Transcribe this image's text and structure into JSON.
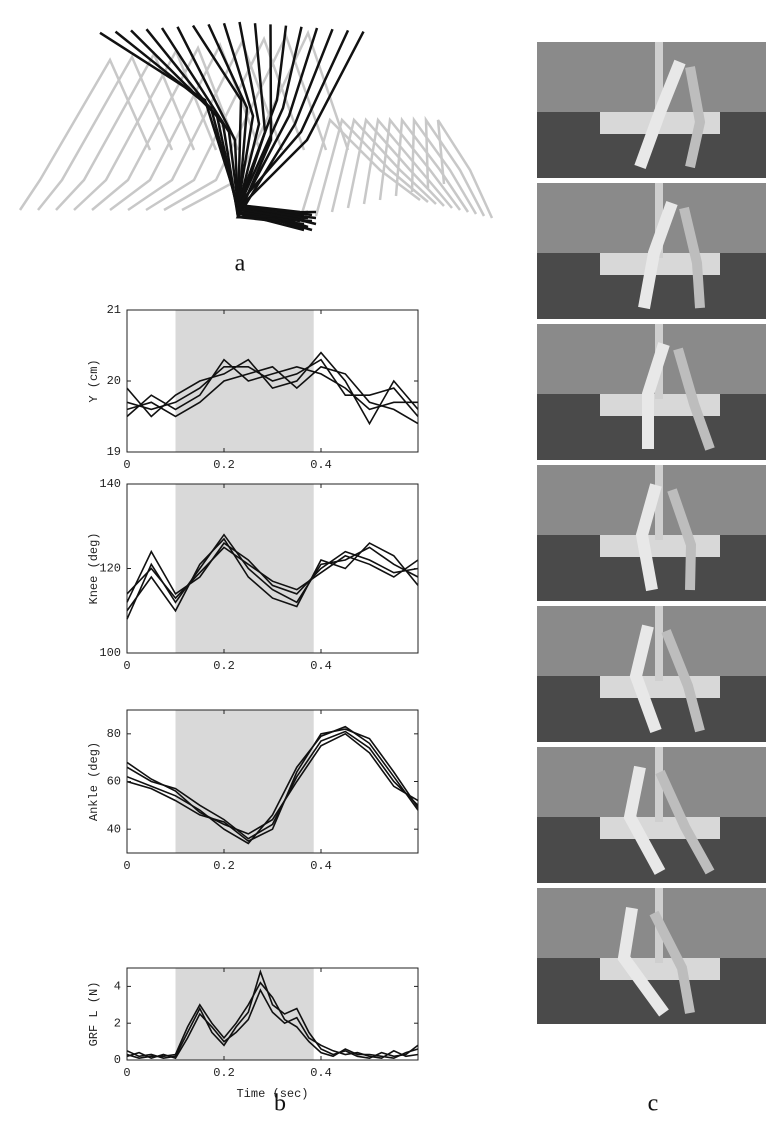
{
  "panel_labels": [
    "a",
    "b",
    "c"
  ],
  "chart_data": [
    {
      "type": "line",
      "ylabel": "Y (cm)",
      "xlim": [
        0,
        0.6
      ],
      "xticks": [
        0,
        0.2,
        0.4
      ],
      "ylim": [
        19,
        21
      ],
      "yticks": [
        19,
        20,
        21
      ],
      "shade": [
        0.1,
        0.385
      ],
      "x": [
        0,
        0.05,
        0.1,
        0.15,
        0.2,
        0.25,
        0.3,
        0.35,
        0.4,
        0.45,
        0.5,
        0.55,
        0.6
      ],
      "series": [
        {
          "color": "#111111",
          "values": [
            19.7,
            19.6,
            19.7,
            19.9,
            20.2,
            20.2,
            20.0,
            20.1,
            20.3,
            19.8,
            19.8,
            19.9,
            19.5
          ]
        },
        {
          "color": "#111111",
          "values": [
            19.5,
            19.8,
            19.6,
            19.8,
            20.3,
            20.0,
            20.1,
            20.2,
            20.1,
            19.9,
            19.6,
            19.7,
            19.7
          ]
        },
        {
          "color": "#111111",
          "values": [
            19.9,
            19.5,
            19.8,
            20.0,
            20.1,
            20.3,
            19.9,
            20.0,
            20.4,
            20.0,
            19.4,
            20.0,
            19.6
          ]
        },
        {
          "color": "#111111",
          "values": [
            19.6,
            19.7,
            19.5,
            19.7,
            20.0,
            20.1,
            20.2,
            19.9,
            20.2,
            20.1,
            19.7,
            19.6,
            19.4
          ]
        }
      ]
    },
    {
      "type": "line",
      "ylabel": "Knee (deg)",
      "xlim": [
        0,
        0.6
      ],
      "xticks": [
        0,
        0.2,
        0.4
      ],
      "ylim": [
        100,
        140
      ],
      "yticks": [
        100,
        120,
        140
      ],
      "shade": [
        0.1,
        0.385
      ],
      "x": [
        0,
        0.05,
        0.1,
        0.15,
        0.2,
        0.25,
        0.3,
        0.35,
        0.4,
        0.45,
        0.5,
        0.55,
        0.6
      ],
      "series": [
        {
          "color": "#111111",
          "values": [
            108,
            121,
            112,
            120,
            128,
            120,
            115,
            112,
            121,
            122,
            125,
            121,
            118
          ]
        },
        {
          "color": "#111111",
          "values": [
            112,
            124,
            114,
            118,
            126,
            122,
            116,
            114,
            120,
            124,
            122,
            119,
            120
          ]
        },
        {
          "color": "#111111",
          "values": [
            110,
            118,
            110,
            121,
            127,
            118,
            113,
            111,
            122,
            120,
            126,
            123,
            116
          ]
        },
        {
          "color": "#111111",
          "values": [
            114,
            120,
            113,
            119,
            125,
            121,
            117,
            115,
            119,
            123,
            121,
            118,
            122
          ]
        }
      ]
    },
    {
      "type": "line",
      "ylabel": "Ankle (deg)",
      "xlim": [
        0,
        0.6
      ],
      "xticks": [
        0,
        0.2,
        0.4
      ],
      "ylim": [
        30,
        90
      ],
      "yticks": [
        40,
        60,
        80
      ],
      "shade": [
        0.1,
        0.385
      ],
      "x": [
        0,
        0.05,
        0.1,
        0.15,
        0.2,
        0.25,
        0.3,
        0.35,
        0.4,
        0.45,
        0.5,
        0.55,
        0.6
      ],
      "series": [
        {
          "color": "#111111",
          "values": [
            66,
            60,
            57,
            50,
            44,
            36,
            42,
            62,
            77,
            81,
            74,
            60,
            50
          ]
        },
        {
          "color": "#111111",
          "values": [
            62,
            58,
            54,
            48,
            40,
            34,
            46,
            66,
            79,
            83,
            76,
            62,
            48
          ]
        },
        {
          "color": "#111111",
          "values": [
            68,
            61,
            56,
            47,
            42,
            38,
            44,
            60,
            75,
            80,
            72,
            58,
            52
          ]
        },
        {
          "color": "#111111",
          "values": [
            60,
            57,
            52,
            46,
            43,
            35,
            40,
            64,
            80,
            82,
            78,
            64,
            49
          ]
        }
      ]
    },
    {
      "type": "line",
      "ylabel": "GRF L (N)",
      "xlabel": "Time (sec)",
      "xlim": [
        0,
        0.6
      ],
      "xticks": [
        0,
        0.2,
        0.4
      ],
      "ylim": [
        0,
        5
      ],
      "yticks": [
        0,
        2,
        4
      ],
      "shade": [
        0.1,
        0.385
      ],
      "x": [
        0,
        0.025,
        0.05,
        0.075,
        0.1,
        0.125,
        0.15,
        0.175,
        0.2,
        0.225,
        0.25,
        0.275,
        0.3,
        0.325,
        0.35,
        0.375,
        0.4,
        0.425,
        0.45,
        0.475,
        0.5,
        0.525,
        0.55,
        0.575,
        0.6
      ],
      "series": [
        {
          "color": "#111111",
          "values": [
            0.5,
            0.2,
            0.3,
            0.1,
            0.2,
            1.5,
            2.8,
            1.5,
            0.8,
            1.8,
            2.6,
            4.8,
            3.0,
            2.5,
            2.8,
            1.5,
            0.6,
            0.3,
            0.5,
            0.2,
            0.1,
            0.4,
            0.2,
            0.3,
            0.8
          ]
        },
        {
          "color": "#111111",
          "values": [
            0.2,
            0.4,
            0.1,
            0.3,
            0.1,
            1.2,
            2.5,
            1.8,
            1.0,
            1.5,
            2.2,
            3.8,
            2.6,
            2.0,
            2.3,
            1.2,
            0.8,
            0.5,
            0.3,
            0.4,
            0.2,
            0.1,
            0.5,
            0.2,
            0.3
          ]
        },
        {
          "color": "#111111",
          "values": [
            0.3,
            0.1,
            0.2,
            0.2,
            0.3,
            1.8,
            3.0,
            2.0,
            1.2,
            2.0,
            3.0,
            4.2,
            3.4,
            2.2,
            1.8,
            1.0,
            0.4,
            0.2,
            0.6,
            0.3,
            0.3,
            0.2,
            0.1,
            0.4,
            0.6
          ]
        }
      ]
    }
  ]
}
